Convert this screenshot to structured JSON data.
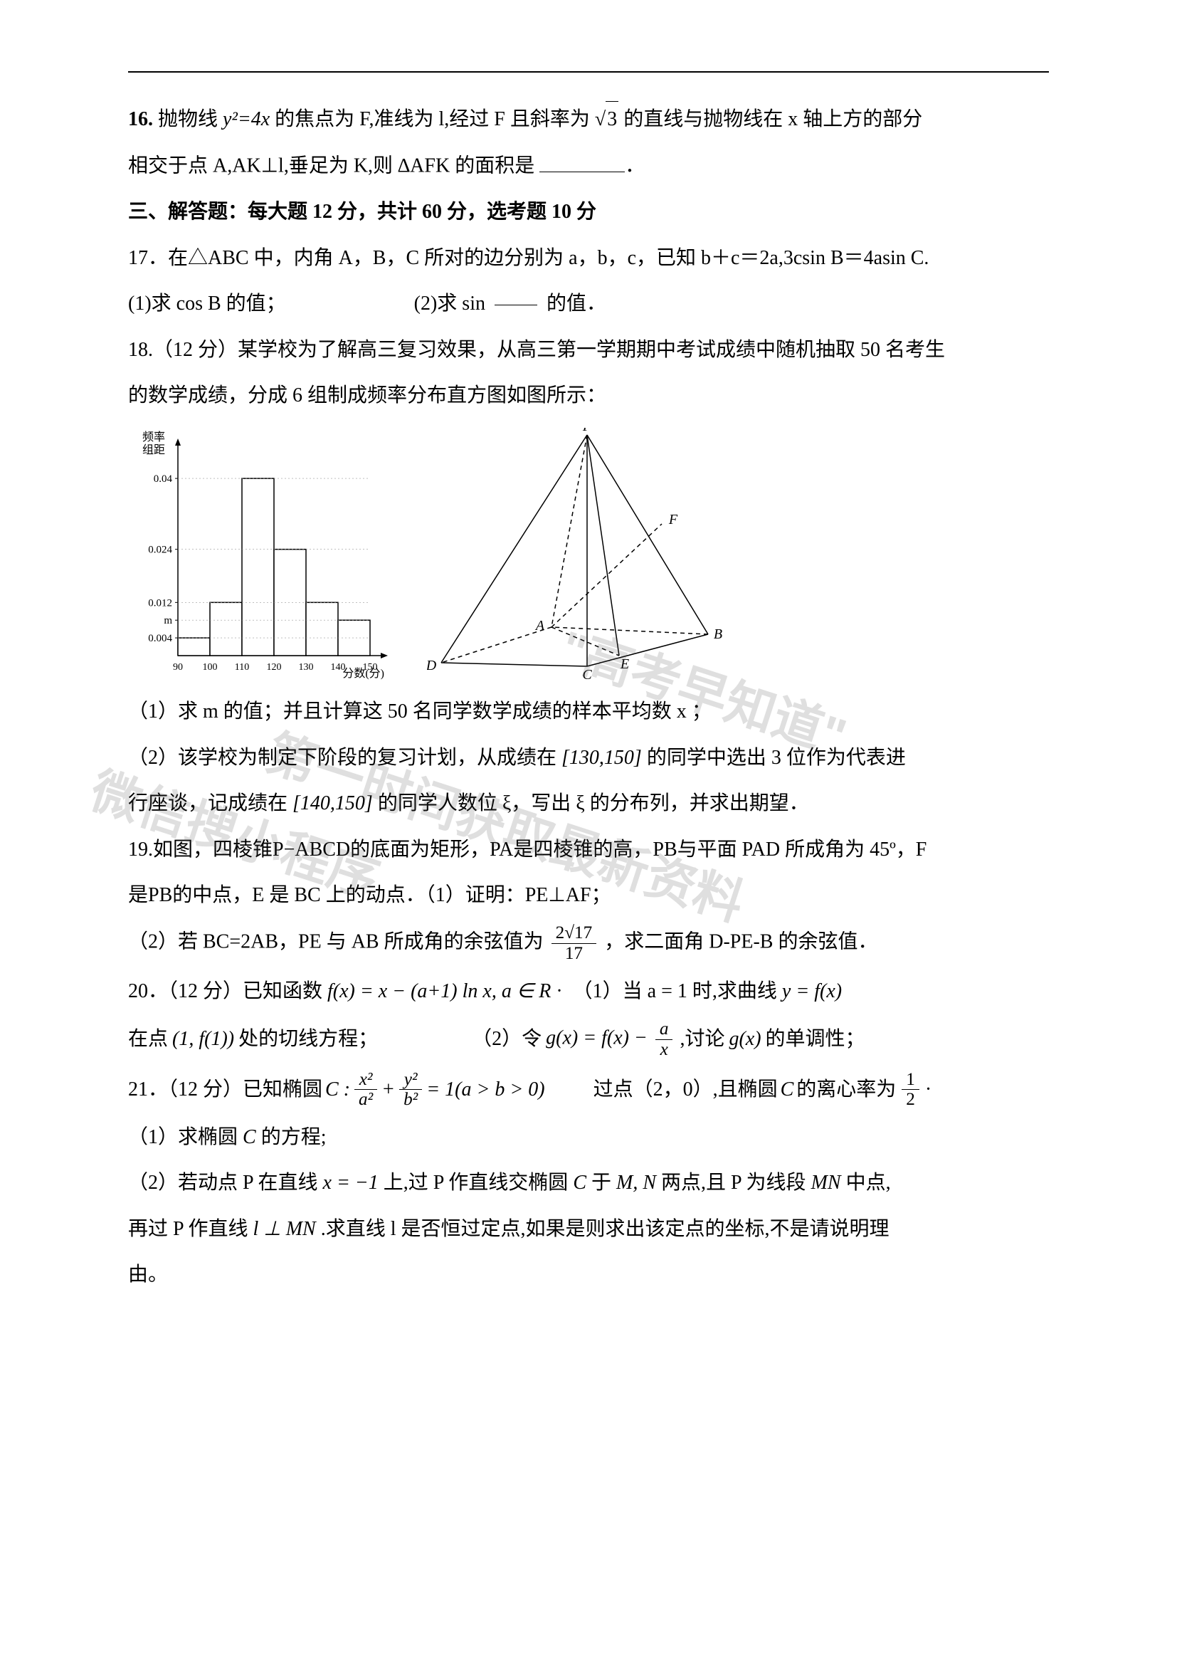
{
  "q16": {
    "line1_a": "16. ",
    "line1_b": "抛物线 ",
    "line1_eq": "y²=4x",
    "line1_c": " 的焦点为 F,准线为 l,经过 F 且斜率为",
    "line1_d": "的直线与抛物线在 x 轴上方的部分",
    "line2": "相交于点 A,AK⊥l,垂足为 K,则 ∆AFK 的面积是"
  },
  "section3": "三、解答题：每大题 12 分，共计 60 分，选考题 10 分",
  "q17": {
    "line1": "17．在△ABC 中，内角 A，B，C 所对的边分别为 a，b，c，已知 b＋c＝2a,3csin B＝4asin C.",
    "part1": "(1)求 cos B 的值；",
    "part2_a": "(2)求 sin",
    "part2_b": "的值．"
  },
  "q18": {
    "line1": "18.（12 分）某学校为了解高三复习效果，从高三第一学期期中考试成绩中随机抽取 50 名考生",
    "line2": "的数学成绩，分成 6 组制成频率分布直方图如图所示：",
    "p1": "（1）求 m 的值；并且计算这 50 名同学数学成绩的样本平均数 x ；",
    "p2a": "（2）该学校为制定下阶段的复习计划，从成绩在",
    "p2b": "的同学中选出 3 位作为代表进",
    "p2c": "行座谈，记成绩在",
    "p2d": "的同学人数位 ξ，写出 ξ 的分布列，并求出期望．",
    "int1": "[130,150]",
    "int2": "[140,150]"
  },
  "q19": {
    "line1": "19.如图，四棱锥P−ABCD的底面为矩形，PA是四棱锥的高，PB与平面 PAD 所成角为 45º，F",
    "line2": "是PB的中点，E 是 BC 上的动点．（1）证明：PE⊥AF；",
    "line3a": "（2）若 BC=2AB，PE 与 AB 所成角的余弦值为",
    "line3b": "，求二面角 D-PE-B 的余弦值．",
    "frac_num": "2√17",
    "frac_den": "17"
  },
  "q20": {
    "line1a": "20．（12 分）已知函数",
    "eq1": "f(x) = x − (a+1) ln x, a ∈ R",
    "line1b": "·　（1）当 a = 1 时,求曲线",
    "eq1b": "y = f(x)",
    "line2a": "在点",
    "eq2a": "(1, f(1))",
    "line2b": "处的切线方程；",
    "line2c": "（2）令",
    "eq2b_l": "g(x) = f(x) −",
    "eq2b_num": "a",
    "eq2b_den": "x",
    "line2d": ",讨论",
    "eq2c": "g(x)",
    "line2e": "的单调性；"
  },
  "q21": {
    "line1a": "21．（12 分）已知椭圆",
    "eq_c": "C :",
    "eq_num1": "x²",
    "eq_den1": "a²",
    "eq_plus": " + ",
    "eq_num2": "y²",
    "eq_den2": "b²",
    "eq_rest": " = 1(a > b > 0)",
    "line1b": "过点（2，0）,且椭圆",
    "line1c": "C",
    "line1d": "的离心率为",
    "ecc_num": "1",
    "ecc_den": "2",
    "p1a": "（1）求椭圆",
    "p1b": "C",
    "p1c": "的方程;",
    "p2a": "（2）若动点 P 在直线",
    "eq_xm1": "x = −1",
    "p2b": "上,过 P 作直线交椭圆",
    "p2b2": "C",
    "p2c": "于",
    "p2c2": "M, N",
    "p2d": "两点,且 P 为线段",
    "p2d2": "MN",
    "p2e": "中点,",
    "p3a": "再过 P 作直线",
    "eq_lperp": "l ⊥ MN",
    "p3b": ".求直线 l 是否恒过定点,如果是则求出该定点的坐标,不是请说明理",
    "p4": "由。"
  },
  "watermark": {
    "w1": "微信搜小程序",
    "w2": "\"高考早知道\"",
    "w3": "第一时间获取最新资料"
  },
  "histogram": {
    "ylabel_top": "频率",
    "ylabel_bot": "组距",
    "yticks": [
      "0.04",
      "0.024",
      "0.012",
      "m",
      "0.004"
    ],
    "ytick_vals": [
      0.04,
      0.024,
      0.012,
      0.008,
      0.004
    ],
    "xticks": [
      "90",
      "100",
      "110",
      "120",
      "130",
      "140",
      "150"
    ],
    "xlabel": "分数(分)",
    "bars": [
      {
        "x0": 90,
        "x1": 100,
        "h": 0.004
      },
      {
        "x0": 100,
        "x1": 110,
        "h": 0.012
      },
      {
        "x0": 110,
        "x1": 120,
        "h": 0.04
      },
      {
        "x0": 120,
        "x1": 130,
        "h": 0.024
      },
      {
        "x0": 130,
        "x1": 140,
        "h": 0.012
      },
      {
        "x0": 140,
        "x1": 150,
        "h": 0.008
      }
    ],
    "colors": {
      "axis": "#000",
      "bar_fill": "#ffffff",
      "bar_stroke": "#000"
    }
  },
  "pyramid": {
    "labels": [
      "P",
      "F",
      "A",
      "B",
      "C",
      "D",
      "E"
    ],
    "points": {
      "P": [
        225,
        10
      ],
      "D": [
        20,
        330
      ],
      "C": [
        225,
        335
      ],
      "B": [
        395,
        290
      ],
      "A": [
        175,
        280
      ],
      "E": [
        270,
        320
      ],
      "F": [
        330,
        135
      ]
    },
    "colors": {
      "stroke": "#000"
    }
  }
}
